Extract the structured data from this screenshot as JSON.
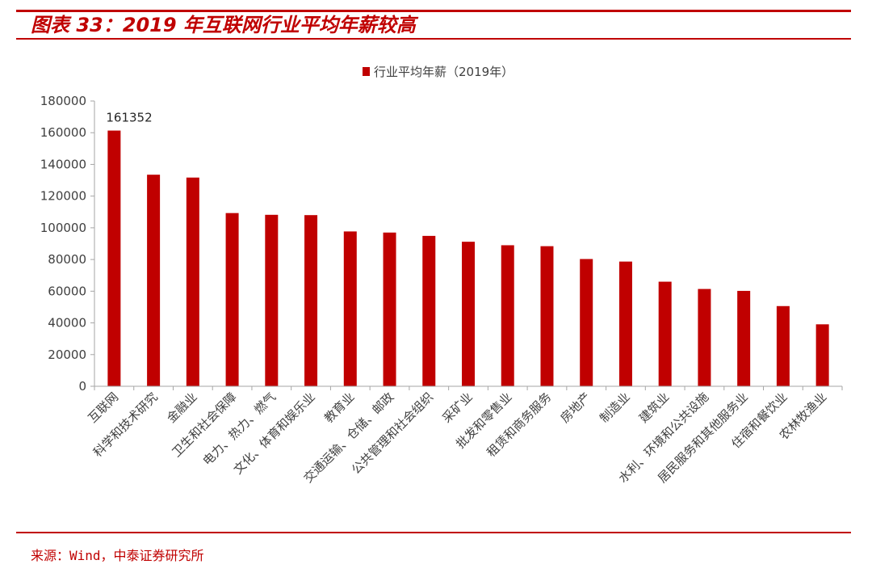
{
  "header": {
    "title": "图表 33：2019 年互联网行业平均年薪较高"
  },
  "footer": {
    "source": "来源：Wind，中泰证券研究所"
  },
  "colors": {
    "accent": "#c00000",
    "bar": "#c00000",
    "axis": "#a6a6a6",
    "text": "#404040"
  },
  "chart_data": {
    "type": "bar",
    "title": "",
    "xlabel": "",
    "ylabel": "",
    "ylim": [
      0,
      180000
    ],
    "yticks": [
      0,
      20000,
      40000,
      60000,
      80000,
      100000,
      120000,
      140000,
      160000,
      180000
    ],
    "grid": false,
    "legend": {
      "position": "top-center",
      "entries": [
        "行业平均年薪（2019年）"
      ]
    },
    "categories": [
      "互联网",
      "科学和技术研究",
      "金融业",
      "卫生和社会保障",
      "电力、热力、燃气",
      "文化、体育和娱乐业",
      "教育业",
      "交通运输、仓储、邮政",
      "公共管理和社会组织",
      "采矿业",
      "批发和零售业",
      "租赁和商务服务",
      "房地产",
      "制造业",
      "建筑业",
      "水利、环境和公共设施",
      "居民服务和其他服务业",
      "住宿和餐饮业",
      "农林牧渔业"
    ],
    "series": [
      {
        "name": "行业平均年薪（2019年）",
        "values": [
          161352,
          133500,
          131700,
          109300,
          108200,
          108000,
          97700,
          97000,
          94900,
          91200,
          89000,
          88400,
          80300,
          78700,
          66000,
          61400,
          60200,
          50600,
          39100
        ]
      }
    ],
    "data_labels": [
      {
        "category_index": 0,
        "text": "161352"
      }
    ]
  }
}
